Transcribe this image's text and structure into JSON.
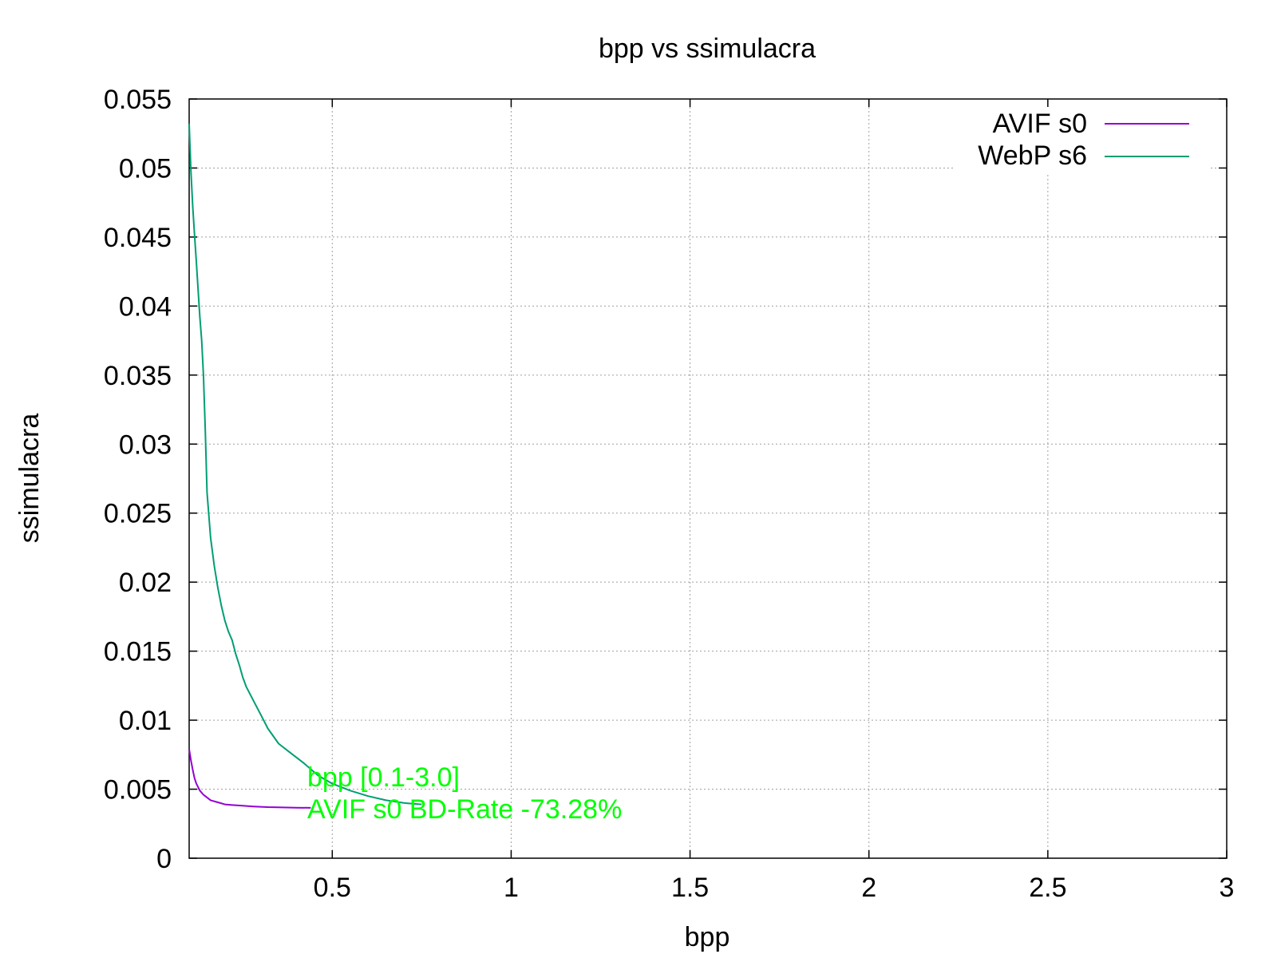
{
  "chart_data": {
    "type": "line",
    "title": "bpp vs ssimulacra",
    "xlabel": "bpp",
    "ylabel": "ssimulacra",
    "xlim": [
      0.1,
      3.0
    ],
    "ylim": [
      0,
      0.055
    ],
    "x_ticks": [
      0.5,
      1,
      1.5,
      2,
      2.5,
      3
    ],
    "x_tick_labels": [
      "0.5",
      "1",
      "1.5",
      "2",
      "2.5",
      "3"
    ],
    "y_ticks": [
      0,
      0.005,
      0.01,
      0.015,
      0.02,
      0.025,
      0.03,
      0.035,
      0.04,
      0.045,
      0.05,
      0.055
    ],
    "y_tick_labels": [
      "0",
      "0.005",
      "0.01",
      "0.015",
      "0.02",
      "0.025",
      "0.03",
      "0.035",
      "0.04",
      "0.045",
      "0.05",
      "0.055"
    ],
    "grid": true,
    "legend_position": "top-right",
    "series": [
      {
        "name": "AVIF s0",
        "color": "#9400d3",
        "x": [
          0.1,
          0.105,
          0.11,
          0.115,
          0.12,
          0.13,
          0.14,
          0.15,
          0.16,
          0.18,
          0.2,
          0.22,
          0.25,
          0.28,
          0.32,
          0.36,
          0.4,
          0.44
        ],
        "y": [
          0.0079,
          0.0071,
          0.0064,
          0.0058,
          0.0054,
          0.0049,
          0.0046,
          0.0044,
          0.0042,
          0.00405,
          0.0039,
          0.00385,
          0.0038,
          0.00375,
          0.0037,
          0.00368,
          0.00366,
          0.00365
        ]
      },
      {
        "name": "WebP s6",
        "color": "#009e73",
        "x": [
          0.1,
          0.105,
          0.11,
          0.115,
          0.12,
          0.13,
          0.135,
          0.14,
          0.145,
          0.15,
          0.16,
          0.17,
          0.18,
          0.19,
          0.2,
          0.21,
          0.22,
          0.23,
          0.24,
          0.25,
          0.26,
          0.28,
          0.3,
          0.32,
          0.35,
          0.38,
          0.42,
          0.46,
          0.5,
          0.55,
          0.6,
          0.65,
          0.7,
          0.75
        ],
        "y": [
          0.0532,
          0.0498,
          0.0472,
          0.0452,
          0.0432,
          0.0392,
          0.0375,
          0.035,
          0.031,
          0.0265,
          0.0232,
          0.0212,
          0.0196,
          0.0183,
          0.0172,
          0.0164,
          0.0158,
          0.0148,
          0.014,
          0.0131,
          0.0124,
          0.0114,
          0.0104,
          0.0094,
          0.0083,
          0.0077,
          0.0069,
          0.006,
          0.0054,
          0.0049,
          0.0045,
          0.0042,
          0.004,
          0.0039
        ]
      }
    ],
    "annotations": [
      {
        "text": "bpp [0.1-3.0]",
        "color": "#00ff00"
      },
      {
        "text": "AVIF s0 BD-Rate -73.28%",
        "color": "#00ff00"
      }
    ]
  }
}
